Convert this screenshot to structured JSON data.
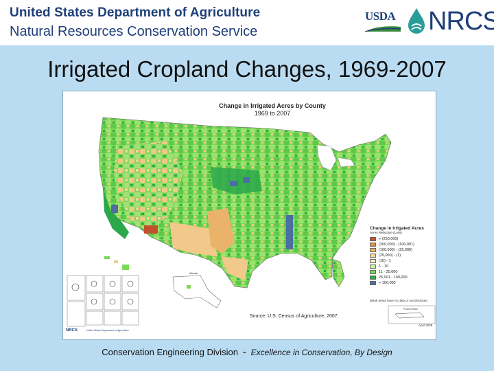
{
  "header": {
    "agency": "United States Department of Agriculture",
    "service": "Natural Resources Conservation Service",
    "logo_usda": "USDA",
    "logo_nrcs": "NRCS",
    "logo_icon": "water-drop-icon"
  },
  "slide": {
    "title": "Irrigated Cropland Changes, 1969-2007"
  },
  "map": {
    "title_line1": "Change in Irrigated Acres by County",
    "title_line2": "1969 to 2007",
    "legend": {
      "title": "Change in Irrigated Acres",
      "subtitle": "Acres Reduction (Loss)",
      "items": [
        {
          "label": "> (250,000)",
          "color": "#c1502e"
        },
        {
          "label": "(200,000) - (100,001)",
          "color": "#e08a46"
        },
        {
          "label": "(100,000) - (25,000)",
          "color": "#f2b360"
        },
        {
          "label": "(25,000) - (1)",
          "color": "#f7d597"
        },
        {
          "label": "(10) - 1",
          "color": "#fbecc8"
        },
        {
          "label": "1 - 10",
          "color": "#c9f0a8"
        },
        {
          "label": "11 - 25,000",
          "color": "#7ed957"
        },
        {
          "label": "25,001 - 100,000",
          "color": "#2aa84a"
        },
        {
          "label": "> 100,000",
          "color": "#4a6fa0"
        }
      ],
      "note": "Blank areas have no data or not disclosed"
    },
    "source": "Source: U.S. Census of Agriculture, 2007.",
    "date": "April 2009",
    "inset_labels": [
      "Puerto Rico",
      "Alaska"
    ],
    "colors": {
      "green_light": "#7ed957",
      "green_dark": "#2aa84a",
      "tan": "#f2c98a",
      "orange": "#e08a46",
      "blue": "#4a6fa0"
    }
  },
  "footer": {
    "division": "Conservation Engineering Division",
    "separator": "-",
    "tagline": "Excellence in Conservation, By Design"
  }
}
